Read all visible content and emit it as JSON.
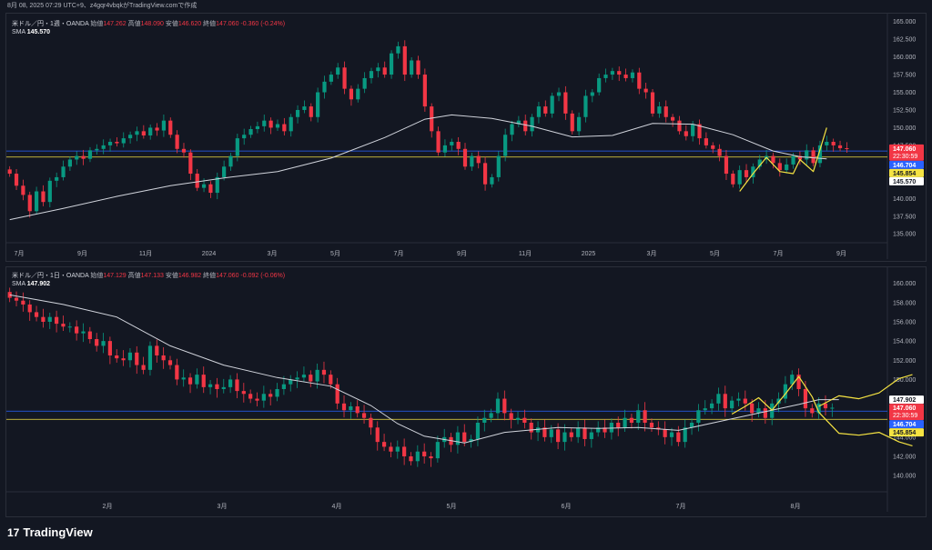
{
  "header": {
    "text": "8月 08, 2025 07:29 UTC+9、z4gqr4vbqkがTradingView.comで作成"
  },
  "brand": {
    "logo": "17",
    "name": "TradingView"
  },
  "chart_data": [
    {
      "type": "candlestick",
      "symbol": "米ドル／円・1週・OANDA",
      "ohlc": {
        "open_label": "始値",
        "open": "147.262",
        "high_label": "高値",
        "high": "148.090",
        "low_label": "安値",
        "low": "146.620",
        "close_label": "終値",
        "close": "147.060",
        "change": "-0.360 (-0.24%)"
      },
      "sma": {
        "label": "SMA",
        "value": "145.570"
      },
      "y_axis": {
        "ticks": [
          "165.000",
          "162.500",
          "160.000",
          "157.500",
          "155.000",
          "152.500",
          "150.000",
          "147.500",
          "145.000",
          "142.500",
          "140.000",
          "137.500",
          "135.000"
        ],
        "range": [
          134.0,
          165.6
        ]
      },
      "x_axis": {
        "ticks": [
          "7月",
          "9月",
          "11月",
          "2024",
          "3月",
          "5月",
          "7月",
          "9月",
          "11月",
          "2025",
          "3月",
          "5月",
          "7月",
          "9月"
        ]
      },
      "price_labels": [
        {
          "text": "147.060",
          "sub": "22:30:59",
          "value": 147.06,
          "bg": "#f23645"
        },
        {
          "text": "146.704",
          "value": 146.704,
          "bg": "#2962ff"
        },
        {
          "text": "145.854",
          "value": 145.854,
          "bg": "#f5e342"
        },
        {
          "text": "145.570",
          "value": 145.57,
          "bg": "#ffffff"
        }
      ],
      "hlines": [
        {
          "value": 146.704,
          "color": "#2962ff"
        },
        {
          "value": 145.854,
          "color": "#f5e342"
        }
      ],
      "closes": [
        143.5,
        141.8,
        140.5,
        138.2,
        141.0,
        139.5,
        142.5,
        143.0,
        144.5,
        145.5,
        146.0,
        145.6,
        146.8,
        147.0,
        147.5,
        148.0,
        147.8,
        148.5,
        149.0,
        149.5,
        148.9,
        150.0,
        149.6,
        151.0,
        149.0,
        147.0,
        146.5,
        143.5,
        141.5,
        142.0,
        140.8,
        143.0,
        144.5,
        146.0,
        148.5,
        149.0,
        149.8,
        150.2,
        151.0,
        150.0,
        150.5,
        149.5,
        151.5,
        152.5,
        153.0,
        151.5,
        155.0,
        156.5,
        157.5,
        158.5,
        155.5,
        154.0,
        155.5,
        157.0,
        158.0,
        158.5,
        157.5,
        160.5,
        161.5,
        157.5,
        159.5,
        157.5,
        153.0,
        149.5,
        146.5,
        147.5,
        148.0,
        147.0,
        144.5,
        146.0,
        145.0,
        142.0,
        143.0,
        146.0,
        149.0,
        150.5,
        151.0,
        149.5,
        151.5,
        153.0,
        152.0,
        154.5,
        155.0,
        152.0,
        149.5,
        151.5,
        154.5,
        155.0,
        157.0,
        157.5,
        158.0,
        157.5,
        157.0,
        157.8,
        155.5,
        155.0,
        152.0,
        153.0,
        151.5,
        151.0,
        149.5,
        148.8,
        150.5,
        148.5,
        147.5,
        147.0,
        146.0,
        143.5,
        142.0,
        144.0,
        143.0,
        144.5,
        145.5,
        146.0,
        145.0,
        144.0,
        144.8,
        146.0,
        145.5,
        146.8,
        145.0,
        147.5,
        148.0,
        147.5,
        147.1,
        147.06
      ],
      "sma_points": [
        [
          0,
          137.0
        ],
        [
          8,
          138.6
        ],
        [
          16,
          140.3
        ],
        [
          24,
          141.8
        ],
        [
          32,
          142.9
        ],
        [
          40,
          143.8
        ],
        [
          48,
          145.7
        ],
        [
          56,
          148.6
        ],
        [
          62,
          151.2
        ],
        [
          66,
          151.8
        ],
        [
          72,
          151.3
        ],
        [
          78,
          150.2
        ],
        [
          84,
          148.7
        ],
        [
          90,
          148.9
        ],
        [
          96,
          150.6
        ],
        [
          102,
          150.5
        ],
        [
          108,
          149.0
        ],
        [
          114,
          146.7
        ],
        [
          118,
          145.9
        ],
        [
          122,
          145.6
        ]
      ],
      "yellow_zigzag": [
        [
          109,
          141.0
        ],
        [
          111,
          143.5
        ],
        [
          113,
          145.8
        ],
        [
          115,
          143.8
        ],
        [
          117,
          143.5
        ],
        [
          118,
          145.5
        ],
        [
          120,
          143.8
        ],
        [
          122,
          150.0
        ]
      ]
    },
    {
      "type": "candlestick",
      "symbol": "米ドル／円・1日・OANDA",
      "ohlc": {
        "open_label": "始値",
        "open": "147.129",
        "high_label": "高値",
        "high": "147.133",
        "low_label": "安値",
        "low": "146.982",
        "close_label": "終値",
        "close": "147.060",
        "change": "-0.092 (-0.06%)"
      },
      "sma": {
        "label": "SMA",
        "value": "147.902"
      },
      "y_axis": {
        "ticks": [
          "160.000",
          "158.000",
          "156.000",
          "154.000",
          "152.000",
          "150.000",
          "148.000",
          "146.000",
          "144.000",
          "142.000",
          "140.000"
        ],
        "range": [
          138.5,
          161.2
        ]
      },
      "x_axis": {
        "ticks": [
          "2月",
          "3月",
          "4月",
          "5月",
          "6月",
          "7月",
          "8月"
        ]
      },
      "price_labels": [
        {
          "text": "147.902",
          "value": 147.902,
          "bg": "#ffffff"
        },
        {
          "text": "147.060",
          "sub": "22:30:59",
          "value": 147.06,
          "bg": "#f23645"
        },
        {
          "text": "146.704",
          "value": 146.704,
          "bg": "#2962ff"
        },
        {
          "text": "145.854",
          "value": 145.854,
          "bg": "#f5e342"
        }
      ],
      "hlines": [
        {
          "value": 146.704,
          "color": "#2962ff"
        },
        {
          "value": 145.854,
          "color": "#f5e342"
        }
      ],
      "closes": [
        158.5,
        158.2,
        157.8,
        157.0,
        156.5,
        156.0,
        156.5,
        155.8,
        155.5,
        155.5,
        154.8,
        155.0,
        154.2,
        153.5,
        154.0,
        152.5,
        152.2,
        152.0,
        152.8,
        151.5,
        151.0,
        153.5,
        152.5,
        152.0,
        151.5,
        150.0,
        150.2,
        149.5,
        150.5,
        149.2,
        149.5,
        149.0,
        149.2,
        150.0,
        148.8,
        148.5,
        148.0,
        147.8,
        148.5,
        148.2,
        149.0,
        149.5,
        150.0,
        150.2,
        150.5,
        149.8,
        151.0,
        150.5,
        149.5,
        147.5,
        146.8,
        147.2,
        146.5,
        146.0,
        145.0,
        143.5,
        143.0,
        142.5,
        143.0,
        142.0,
        141.5,
        142.5,
        142.0,
        141.8,
        143.5,
        144.0,
        143.2,
        144.5,
        143.5,
        143.8,
        145.5,
        146.0,
        146.5,
        148.0,
        146.5,
        145.8,
        146.0,
        145.5,
        144.5,
        145.0,
        144.0,
        144.8,
        143.5,
        144.5,
        144.0,
        145.0,
        143.8,
        144.5,
        145.0,
        144.5,
        145.5,
        145.0,
        146.0,
        145.5,
        146.8,
        145.5,
        145.0,
        144.8,
        144.0,
        144.5,
        143.5,
        145.0,
        145.5,
        146.8,
        147.0,
        147.5,
        148.5,
        147.0,
        147.8,
        148.0,
        147.5,
        146.5,
        147.0,
        146.0,
        147.5,
        148.0,
        149.5,
        150.5,
        149.0,
        147.0,
        146.5,
        147.5,
        147.0,
        147.06
      ],
      "sma_points": [
        [
          0,
          158.8
        ],
        [
          8,
          157.8
        ],
        [
          16,
          156.5
        ],
        [
          24,
          153.5
        ],
        [
          32,
          151.5
        ],
        [
          40,
          150.2
        ],
        [
          48,
          149.3
        ],
        [
          54,
          147.3
        ],
        [
          58,
          145.4
        ],
        [
          62,
          144.1
        ],
        [
          68,
          143.4
        ],
        [
          74,
          144.5
        ],
        [
          82,
          145.0
        ],
        [
          88,
          144.9
        ],
        [
          94,
          145.0
        ],
        [
          100,
          144.7
        ],
        [
          106,
          145.6
        ],
        [
          112,
          146.5
        ],
        [
          118,
          147.4
        ],
        [
          121,
          147.9
        ],
        [
          124,
          147.9
        ]
      ],
      "yellow_zigzag": [
        [
          108,
          146.4
        ],
        [
          110,
          147.2
        ],
        [
          112,
          148.1
        ],
        [
          114,
          146.8
        ],
        [
          116,
          148.5
        ],
        [
          118,
          150.3
        ],
        [
          120,
          148.2
        ],
        [
          121,
          146.6
        ]
      ],
      "yellow_proj_up": [
        [
          121,
          147.2
        ],
        [
          124,
          148.3
        ],
        [
          127,
          148.0
        ],
        [
          130,
          148.6
        ],
        [
          133,
          150.1
        ],
        [
          135,
          150.5
        ]
      ],
      "yellow_proj_down": [
        [
          121,
          146.6
        ],
        [
          124,
          144.4
        ],
        [
          127,
          144.2
        ],
        [
          130,
          144.5
        ],
        [
          133,
          143.5
        ],
        [
          135,
          143.1
        ]
      ]
    }
  ]
}
